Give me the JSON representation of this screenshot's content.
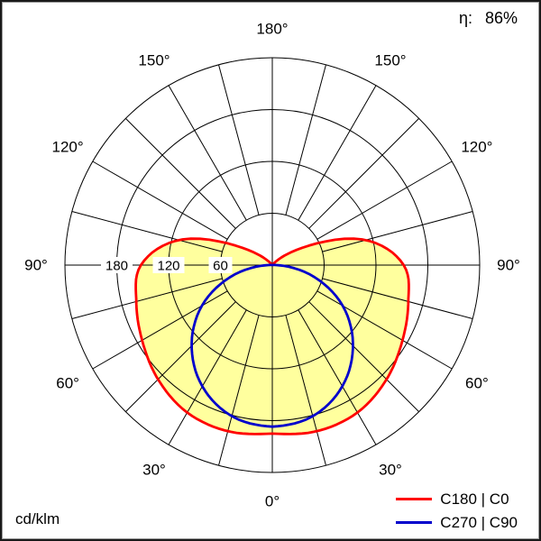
{
  "header": {
    "efficiency_label": "η:",
    "efficiency_value": "86%"
  },
  "footer": {
    "unit_label": "cd/klm"
  },
  "legend": [
    {
      "label": "C180 | C0",
      "color": "#ff0000"
    },
    {
      "label": "C270 | C90",
      "color": "#0000cc"
    }
  ],
  "chart_data": {
    "type": "polar",
    "subtype": "luminous-intensity-distribution",
    "unit": "cd/klm",
    "efficiency_percent": 86,
    "rlim": [
      0,
      240
    ],
    "gamma_step_deg": 15,
    "gamma_deg": [
      0,
      15,
      30,
      45,
      60,
      75,
      90,
      105,
      120,
      135,
      150,
      165,
      180
    ],
    "grid": {
      "angle_step_deg": 15,
      "radial_rings": [
        60,
        120,
        180,
        240
      ],
      "radial_axis_labels": [
        60,
        120,
        180
      ]
    },
    "angle_labels": [
      "0°",
      "30°",
      "60°",
      "90°",
      "120°",
      "150°",
      "180°"
    ],
    "series": [
      {
        "name": "C180 | C0",
        "color": "#ff0000",
        "fill": "#ffff9e",
        "symmetric": true,
        "values": [
          195,
          199,
          197,
          187,
          174,
          163,
          152,
          112,
          40,
          6,
          1,
          0,
          0
        ]
      },
      {
        "name": "C270 | C90",
        "color": "#0000cc",
        "fill": null,
        "symmetric": true,
        "values": [
          187,
          181,
          162,
          132,
          94,
          48,
          5,
          0,
          0,
          0,
          0,
          0,
          0
        ]
      }
    ]
  }
}
